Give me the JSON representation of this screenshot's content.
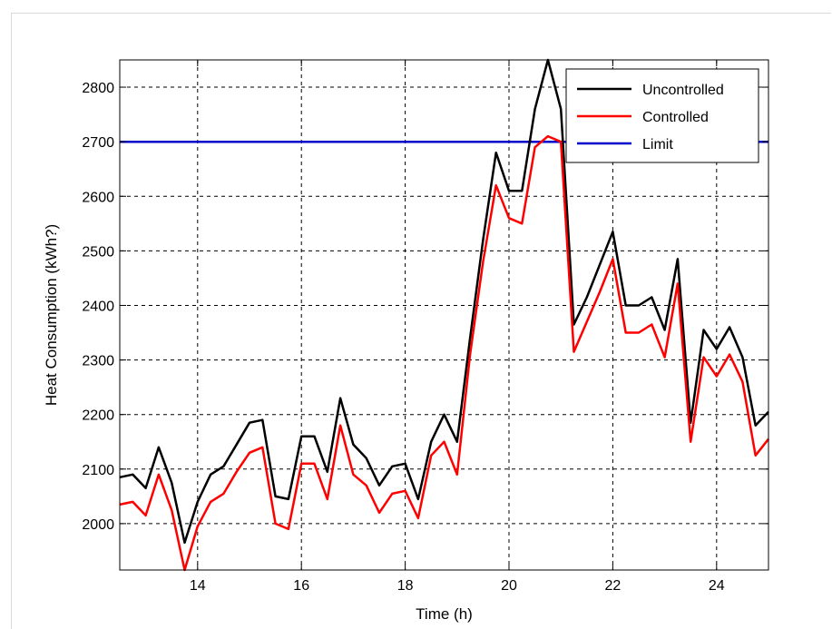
{
  "chart_data": {
    "type": "line",
    "xlabel": "Time (h)",
    "ylabel": "Heat Consumption (kWh?)",
    "xlim": [
      12.5,
      25
    ],
    "ylim": [
      1915,
      2850
    ],
    "xticks": [
      14,
      16,
      18,
      20,
      22,
      24
    ],
    "yticks": [
      2000,
      2100,
      2200,
      2300,
      2400,
      2500,
      2600,
      2700,
      2800
    ],
    "grid": true,
    "legend_position": "top-right",
    "series": [
      {
        "name": "Uncontrolled",
        "color": "#000000",
        "points": [
          [
            12.5,
            2085
          ],
          [
            12.75,
            2090
          ],
          [
            13.0,
            2065
          ],
          [
            13.25,
            2140
          ],
          [
            13.5,
            2075
          ],
          [
            13.75,
            1965
          ],
          [
            14.0,
            2040
          ],
          [
            14.25,
            2090
          ],
          [
            14.5,
            2105
          ],
          [
            14.75,
            2145
          ],
          [
            15.0,
            2185
          ],
          [
            15.25,
            2190
          ],
          [
            15.5,
            2050
          ],
          [
            15.75,
            2045
          ],
          [
            16.0,
            2160
          ],
          [
            16.25,
            2160
          ],
          [
            16.5,
            2095
          ],
          [
            16.75,
            2230
          ],
          [
            17.0,
            2145
          ],
          [
            17.25,
            2120
          ],
          [
            17.5,
            2070
          ],
          [
            17.75,
            2105
          ],
          [
            18.0,
            2110
          ],
          [
            18.25,
            2045
          ],
          [
            18.5,
            2150
          ],
          [
            18.75,
            2200
          ],
          [
            19.0,
            2150
          ],
          [
            19.25,
            2340
          ],
          [
            19.5,
            2520
          ],
          [
            19.75,
            2680
          ],
          [
            20.0,
            2610
          ],
          [
            20.25,
            2610
          ],
          [
            20.5,
            2760
          ],
          [
            20.75,
            2850
          ],
          [
            21.0,
            2760
          ],
          [
            21.25,
            2365
          ],
          [
            21.5,
            2415
          ],
          [
            21.75,
            2475
          ],
          [
            22.0,
            2535
          ],
          [
            22.25,
            2400
          ],
          [
            22.5,
            2400
          ],
          [
            22.75,
            2415
          ],
          [
            23.0,
            2355
          ],
          [
            23.25,
            2485
          ],
          [
            23.5,
            2185
          ],
          [
            23.75,
            2355
          ],
          [
            24.0,
            2320
          ],
          [
            24.25,
            2360
          ],
          [
            24.5,
            2305
          ],
          [
            24.75,
            2180
          ],
          [
            25.0,
            2205
          ]
        ]
      },
      {
        "name": "Controlled",
        "color": "#ff0000",
        "points": [
          [
            12.5,
            2035
          ],
          [
            12.75,
            2040
          ],
          [
            13.0,
            2015
          ],
          [
            13.25,
            2090
          ],
          [
            13.5,
            2025
          ],
          [
            13.75,
            1915
          ],
          [
            14.0,
            1995
          ],
          [
            14.25,
            2040
          ],
          [
            14.5,
            2055
          ],
          [
            14.75,
            2095
          ],
          [
            15.0,
            2130
          ],
          [
            15.25,
            2140
          ],
          [
            15.5,
            2000
          ],
          [
            15.75,
            1990
          ],
          [
            16.0,
            2110
          ],
          [
            16.25,
            2110
          ],
          [
            16.5,
            2045
          ],
          [
            16.75,
            2180
          ],
          [
            17.0,
            2090
          ],
          [
            17.25,
            2070
          ],
          [
            17.5,
            2020
          ],
          [
            17.75,
            2055
          ],
          [
            18.0,
            2060
          ],
          [
            18.25,
            2010
          ],
          [
            18.5,
            2125
          ],
          [
            18.75,
            2150
          ],
          [
            19.0,
            2090
          ],
          [
            19.25,
            2310
          ],
          [
            19.5,
            2480
          ],
          [
            19.75,
            2620
          ],
          [
            20.0,
            2560
          ],
          [
            20.25,
            2550
          ],
          [
            20.5,
            2690
          ],
          [
            20.75,
            2710
          ],
          [
            21.0,
            2700
          ],
          [
            21.25,
            2315
          ],
          [
            21.5,
            2370
          ],
          [
            21.75,
            2425
          ],
          [
            22.0,
            2485
          ],
          [
            22.25,
            2350
          ],
          [
            22.5,
            2350
          ],
          [
            22.75,
            2365
          ],
          [
            23.0,
            2305
          ],
          [
            23.25,
            2440
          ],
          [
            23.5,
            2150
          ],
          [
            23.75,
            2305
          ],
          [
            24.0,
            2270
          ],
          [
            24.25,
            2310
          ],
          [
            24.5,
            2260
          ],
          [
            24.75,
            2125
          ],
          [
            25.0,
            2155
          ]
        ]
      },
      {
        "name": "Limit",
        "color": "#0000cc",
        "points": [
          [
            12.5,
            2700
          ],
          [
            25.0,
            2700
          ]
        ]
      }
    ]
  }
}
